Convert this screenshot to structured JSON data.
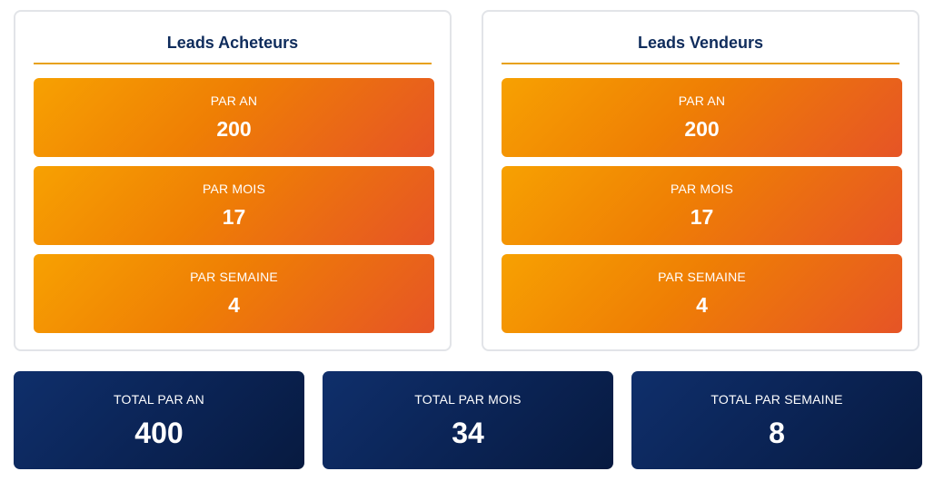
{
  "colors": {
    "title": "#0f2c5c",
    "rule": "#e7a11a",
    "stat_gradient_start": "#f7a102",
    "stat_gradient_end": "#e65426",
    "total_gradient_start": "#0f2f6b",
    "total_gradient_end": "#071a40"
  },
  "buyers": {
    "title": "Leads Acheteurs",
    "stats": [
      {
        "label": "PAR AN",
        "value": "200"
      },
      {
        "label": "PAR MOIS",
        "value": "17"
      },
      {
        "label": "PAR SEMAINE",
        "value": "4"
      }
    ]
  },
  "sellers": {
    "title": "Leads Vendeurs",
    "stats": [
      {
        "label": "PAR AN",
        "value": "200"
      },
      {
        "label": "PAR MOIS",
        "value": "17"
      },
      {
        "label": "PAR SEMAINE",
        "value": "4"
      }
    ]
  },
  "totals": [
    {
      "label": "TOTAL PAR AN",
      "value": "400"
    },
    {
      "label": "TOTAL PAR MOIS",
      "value": "34"
    },
    {
      "label": "TOTAL PAR SEMAINE",
      "value": "8"
    }
  ]
}
